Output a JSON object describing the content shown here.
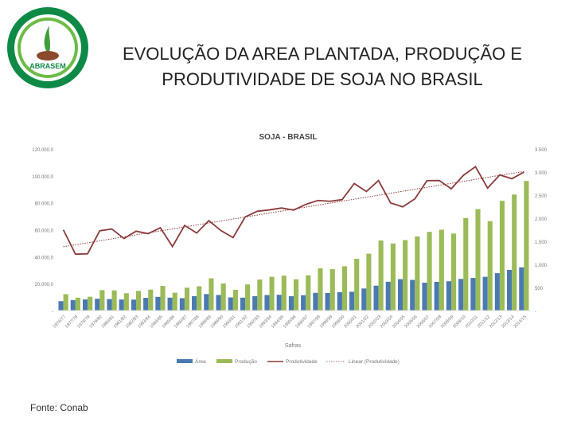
{
  "logo": {
    "text": "ABRASEM",
    "colors": {
      "outer": "#0e8a46",
      "inner_ring": "#6dbb45",
      "seed": "#8b4a2b"
    }
  },
  "slide": {
    "title_line1": "EVOLUÇÃO DA AREA PLANTADA, PRODUÇÃO E",
    "title_line2": "PRODUTIVIDADE DE SOJA NO BRASIL",
    "source": "Fonte: Conab"
  },
  "chart_data": {
    "type": "bar",
    "title": "SOJA - BRASIL",
    "xlabel": "Safras",
    "categories": [
      "1976/77",
      "1977/78",
      "1978/79",
      "1979/80",
      "1980/81",
      "1981/82",
      "1982/83",
      "1983/84",
      "1984/85",
      "1985/86",
      "1986/87",
      "1987/88",
      "1988/89",
      "1989/90",
      "1990/91",
      "1991/92",
      "1992/93",
      "1993/94",
      "1994/95",
      "1995/96",
      "1996/97",
      "1997/98",
      "1998/99",
      "1999/00",
      "2000/01",
      "2001/02",
      "2002/03",
      "2003/04",
      "2004/05",
      "2005/06",
      "2006/07",
      "2007/08",
      "2008/09",
      "2009/10",
      "2010/11",
      "2011/12",
      "2012/13",
      "2013/14",
      "2014/15"
    ],
    "left_axis": {
      "ylim": [
        0,
        120000
      ],
      "ticks": [
        "-",
        "20.000,0",
        "40.000,0",
        "60.000,0",
        "80.000,0",
        "100.000,0",
        "120.000,0"
      ]
    },
    "right_axis": {
      "ylim": [
        0,
        3500
      ],
      "ticks": [
        "-",
        "500",
        "1.000",
        "1.500",
        "2.000",
        "2.500",
        "3.000",
        "3.500"
      ]
    },
    "series": [
      {
        "name": "Área",
        "type": "bar",
        "axis": "left",
        "color": "#4a7ab0",
        "values": [
          6949,
          7782,
          8256,
          8774,
          8501,
          8202,
          8137,
          9421,
          10153,
          9575,
          9180,
          10717,
          12203,
          11551,
          9743,
          9582,
          10717,
          11502,
          11679,
          10663,
          11381,
          13158,
          13061,
          13623,
          13970,
          16386,
          18475,
          21376,
          23301,
          22749,
          20687,
          21313,
          21743,
          23468,
          24181,
          25042,
          27736,
          30173,
          32093
        ]
      },
      {
        "name": "Produção",
        "type": "bar",
        "axis": "left",
        "color": "#9bbb59",
        "values": [
          12145,
          9541,
          10240,
          15156,
          15007,
          12836,
          14582,
          15541,
          18278,
          13274,
          16977,
          18016,
          23929,
          20101,
          15395,
          19419,
          23042,
          25059,
          25934,
          23190,
          26160,
          31370,
          30765,
          32890,
          38432,
          42230,
          52018,
          49793,
          52305,
          55027,
          58392,
          60018,
          57166,
          68688,
          75324,
          66383,
          81499,
          86121,
          96228
        ]
      },
      {
        "name": "Produtividade",
        "type": "line",
        "axis": "right",
        "color": "#8b3a3a",
        "values": [
          1748,
          1221,
          1229,
          1727,
          1766,
          1559,
          1718,
          1665,
          1792,
          1386,
          1842,
          1679,
          1947,
          1732,
          1580,
          2027,
          2150,
          2180,
          2221,
          2175,
          2299,
          2384,
          2367,
          2403,
          2751,
          2577,
          2816,
          2329,
          2245,
          2419,
          2813,
          2816,
          2636,
          2927,
          3115,
          2651,
          2938,
          2854,
          2998
        ]
      },
      {
        "name": "Linear (Produtividade)",
        "type": "trendline",
        "axis": "right",
        "color": "#8b3a3a"
      }
    ],
    "legend": "bottom",
    "grid": false
  }
}
